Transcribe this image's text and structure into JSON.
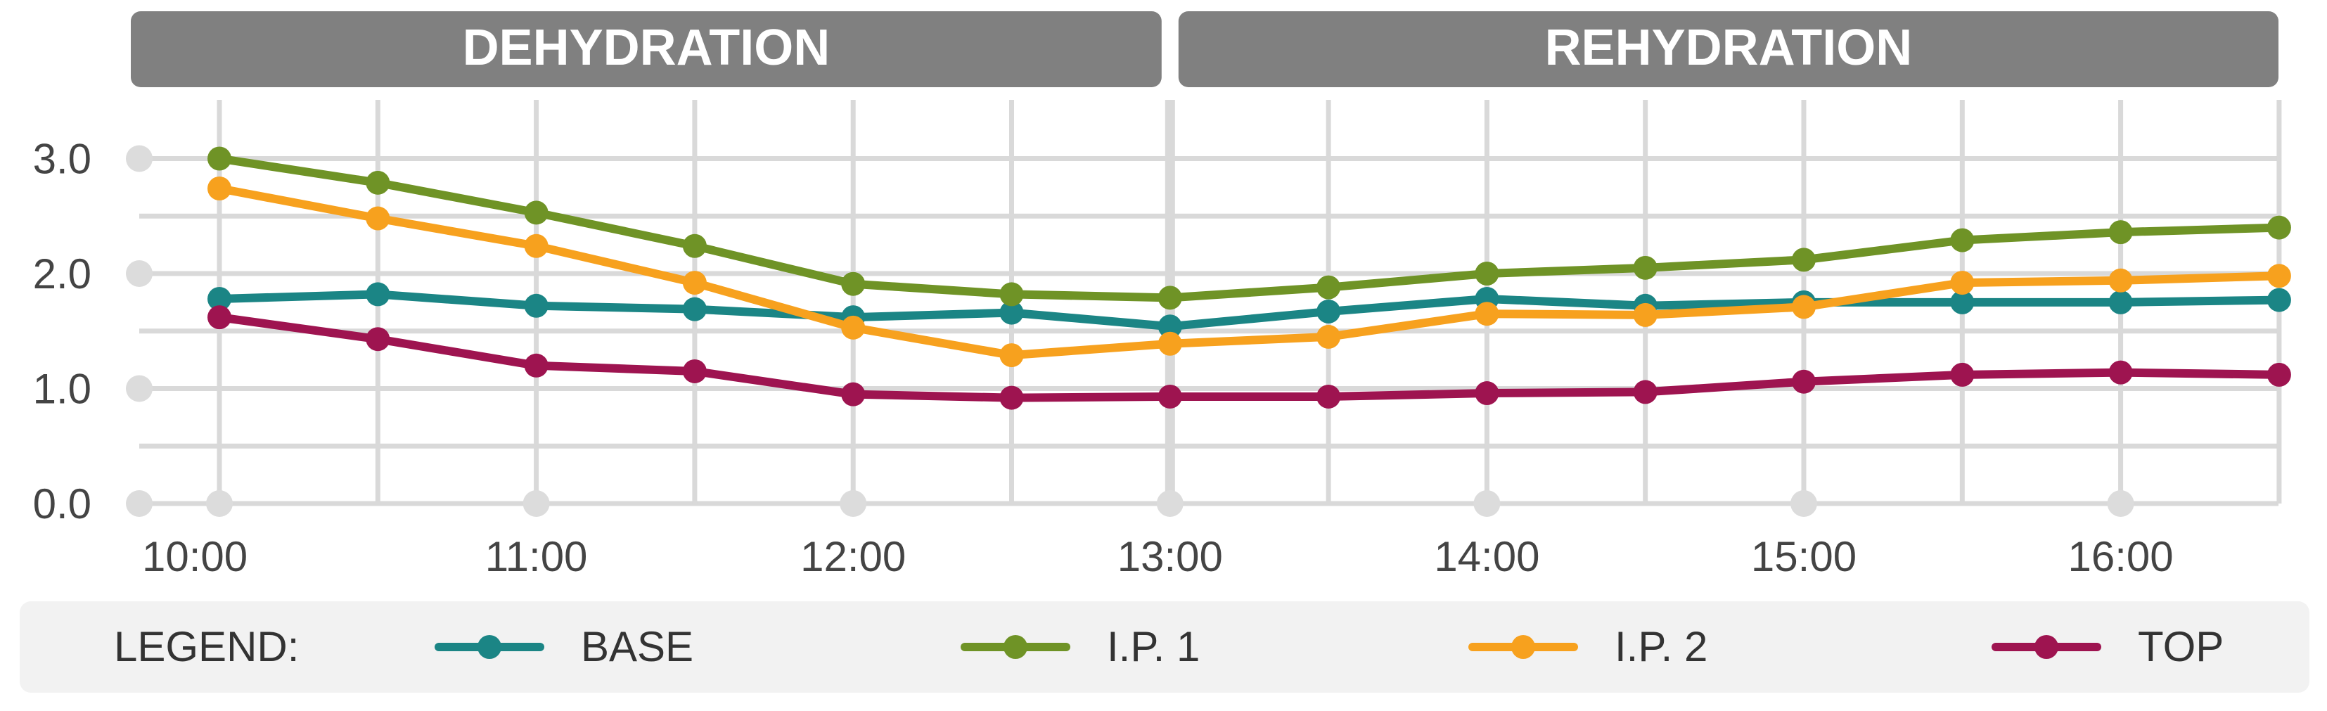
{
  "chart_data": {
    "type": "line",
    "phases": [
      {
        "label": "DEHYDRATION",
        "x_start": "10:00",
        "x_end": "13:00"
      },
      {
        "label": "REHYDRATION",
        "x_start": "13:00",
        "x_end": "16:30"
      }
    ],
    "x": [
      "10:00",
      "10:30",
      "11:00",
      "11:30",
      "12:00",
      "12:30",
      "13:00",
      "13:30",
      "14:00",
      "14:30",
      "15:00",
      "15:30",
      "16:00",
      "16:30"
    ],
    "x_tick_labels": [
      "10:00",
      "11:00",
      "12:00",
      "13:00",
      "14:00",
      "15:00",
      "16:00"
    ],
    "y_tick_labels": [
      "0.0",
      "1.0",
      "2.0",
      "3.0"
    ],
    "ylim": [
      0,
      3
    ],
    "grid": true,
    "legend": {
      "title": "LEGEND:",
      "placement": "bottom"
    },
    "series": [
      {
        "name": "BASE",
        "color": "#1b8585",
        "values": [
          1.78,
          1.82,
          1.72,
          1.69,
          1.62,
          1.66,
          1.54,
          1.67,
          1.78,
          1.72,
          1.75,
          1.75,
          1.75,
          1.77
        ]
      },
      {
        "name": "I.P. 1",
        "color": "#6f9326",
        "values": [
          3.0,
          2.79,
          2.53,
          2.24,
          1.91,
          1.82,
          1.79,
          1.88,
          2.0,
          2.05,
          2.12,
          2.29,
          2.36,
          2.4
        ]
      },
      {
        "name": "I.P. 2",
        "color": "#f7a11e",
        "values": [
          2.74,
          2.48,
          2.24,
          1.92,
          1.53,
          1.29,
          1.39,
          1.45,
          1.65,
          1.64,
          1.71,
          1.92,
          1.94,
          1.98
        ]
      },
      {
        "name": "TOP",
        "color": "#9e1450",
        "values": [
          1.62,
          1.43,
          1.2,
          1.15,
          0.95,
          0.92,
          0.93,
          0.93,
          0.96,
          0.97,
          1.06,
          1.12,
          1.14,
          1.12
        ]
      }
    ]
  }
}
